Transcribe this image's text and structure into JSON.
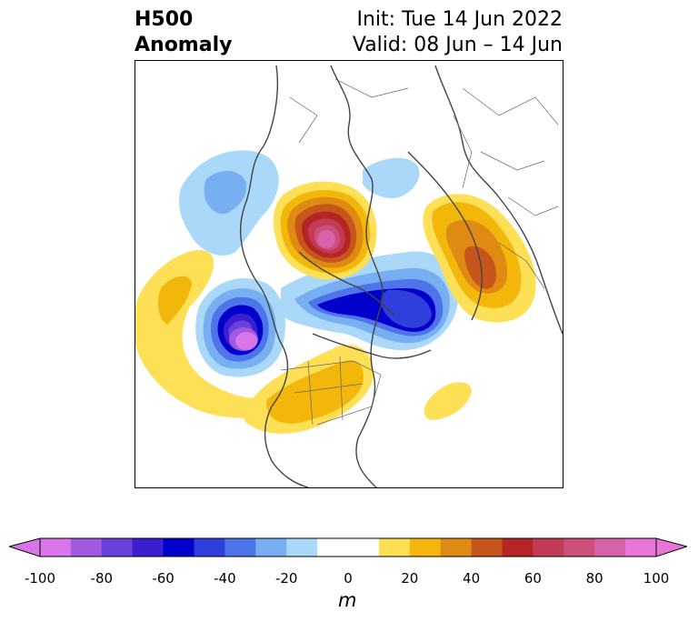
{
  "header": {
    "title_line1": "H500",
    "title_line2": "Anomaly",
    "init_label": "Init: Tue 14 Jun 2022",
    "valid_label": "Valid: 08 Jun – 14 Jun"
  },
  "map": {
    "projection": "polar-stereographic",
    "field": "500 hPa geopotential height anomaly"
  },
  "colorbar": {
    "unit": "m",
    "min": -100,
    "max": 100,
    "extend": "both",
    "tick_labels": [
      "-100",
      "-80",
      "-60",
      "-40",
      "-20",
      "0",
      "20",
      "40",
      "60",
      "80",
      "100"
    ],
    "levels": [
      {
        "range": "-100 to -90",
        "color": "#d875e8"
      },
      {
        "range": "-90 to -80",
        "color": "#a05ae0"
      },
      {
        "range": "-80 to -70",
        "color": "#6b3fd9"
      },
      {
        "range": "-70 to -60",
        "color": "#3a1ed0"
      },
      {
        "range": "-60 to -50",
        "color": "#0000cc"
      },
      {
        "range": "-50 to -40",
        "color": "#2e3fdb"
      },
      {
        "range": "-40 to -30",
        "color": "#4d74e8"
      },
      {
        "range": "-30 to -20",
        "color": "#78aef2"
      },
      {
        "range": "-20 to -10",
        "color": "#aad8f8"
      },
      {
        "range": "-10 to 10",
        "color": "#ffffff"
      },
      {
        "range": "10 to 20",
        "color": "#fde056"
      },
      {
        "range": "20 to 30",
        "color": "#f2b70a"
      },
      {
        "range": "30 to 40",
        "color": "#df8a12"
      },
      {
        "range": "40 to 50",
        "color": "#c6561b"
      },
      {
        "range": "50 to 60",
        "color": "#b52525"
      },
      {
        "range": "60 to 70",
        "color": "#c23a54"
      },
      {
        "range": "70 to 80",
        "color": "#cd4f7c"
      },
      {
        "range": "80 to 90",
        "color": "#d862a8"
      },
      {
        "range": "90 to 100",
        "color": "#e875d8"
      }
    ]
  }
}
